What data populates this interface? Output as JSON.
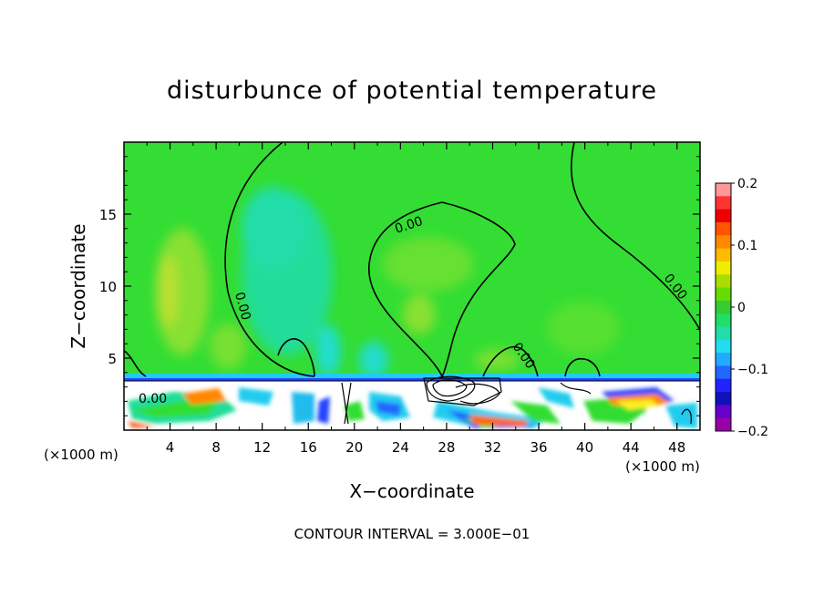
{
  "chart_data": {
    "type": "heatmap",
    "title": "disturbunce of potential temperature",
    "xlabel": "X−coordinate",
    "ylabel": "Z−coordinate",
    "x_units": "(×1000 m)",
    "x_units_right": "(×1000 m)",
    "xlim": [
      0,
      50
    ],
    "ylim": [
      0,
      20
    ],
    "x_ticks": [
      "4",
      "8",
      "12",
      "16",
      "20",
      "24",
      "28",
      "32",
      "36",
      "40",
      "44",
      "48"
    ],
    "y_ticks": [
      "5",
      "10",
      "15"
    ],
    "colorbar": {
      "range": [
        -0.2,
        0.2
      ],
      "ticks": [
        "0.2",
        "0.1",
        "0",
        "−0.1",
        "−0.2"
      ]
    },
    "contour_labels": [
      "0.00",
      "0.00",
      "0.00",
      "0.00",
      "0.00"
    ],
    "contour_interval": "CONTOUR INTERVAL = 3.000E−01",
    "colors": {
      "background_field": "#33dd33",
      "neutral_cyan": "#22ddbb",
      "positive": "#ff6600",
      "negative": "#2244ff"
    }
  }
}
